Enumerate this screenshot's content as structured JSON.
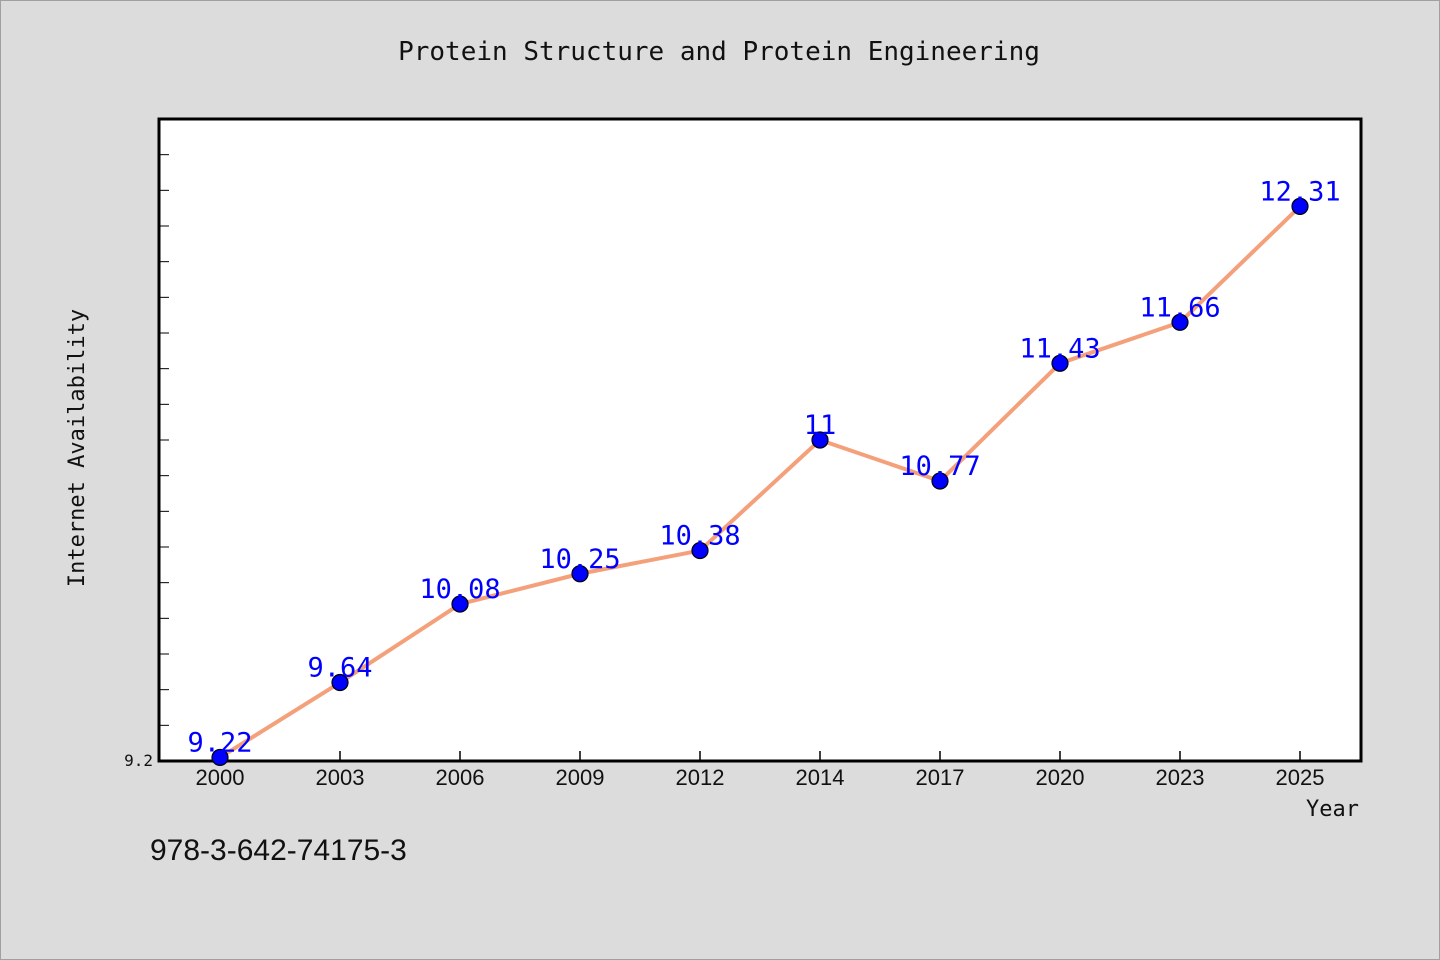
{
  "chart_data": {
    "type": "line",
    "title": "Protein Structure and Protein Engineering",
    "xlabel": "Year",
    "ylabel": "Internet Availability",
    "categories": [
      "2000",
      "2003",
      "2006",
      "2009",
      "2012",
      "2014",
      "2017",
      "2020",
      "2023",
      "2025"
    ],
    "series": [
      {
        "values": [
          9.22,
          9.64,
          10.08,
          10.25,
          10.38,
          11,
          10.77,
          11.43,
          11.66,
          12.31
        ],
        "labels": [
          "9.22",
          "9.64",
          "10.08",
          "10.25",
          "10.38",
          "11",
          "10.77",
          "11.43",
          "11.66",
          "12.31"
        ],
        "line_color": "#f4a07a",
        "marker_color": "#0000ff",
        "label_color": "#0000ff"
      }
    ],
    "ylim": [
      9.2,
      12.8
    ],
    "y_tick_labels": [
      {
        "value": 9.2,
        "label": "9.2"
      }
    ],
    "grid": false,
    "legend": "none"
  },
  "footer": {
    "code": "978-3-642-74175-3"
  }
}
